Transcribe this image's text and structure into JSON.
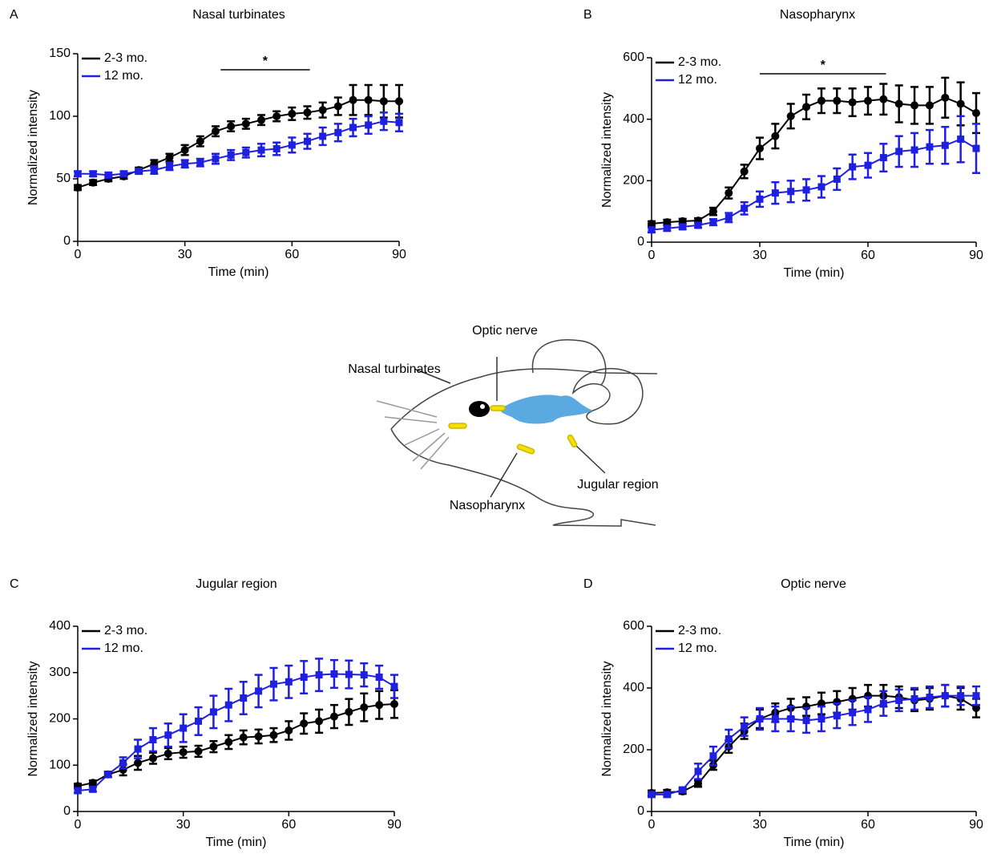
{
  "chart_data": [
    {
      "type": "line",
      "panel": "A",
      "title": "Nasal turbinates",
      "xlabel": "Time (min)",
      "ylabel": "Normalized intensity",
      "x": [
        0,
        4.3,
        8.6,
        12.9,
        17.1,
        21.4,
        25.7,
        30,
        34.3,
        38.6,
        42.9,
        47.1,
        51.4,
        55.7,
        60,
        64.3,
        68.6,
        72.9,
        77.1,
        81.4,
        85.7,
        90
      ],
      "series": [
        {
          "name": "2-3 mo.",
          "color": "#000000",
          "marker": "circle",
          "values": [
            43,
            47,
            50,
            52,
            57,
            62,
            67,
            73,
            80,
            88,
            92,
            94,
            97,
            100,
            102,
            103,
            105,
            108,
            113,
            113,
            112,
            112
          ],
          "errors": [
            2,
            2,
            2,
            2,
            2,
            3,
            3,
            4,
            4,
            4,
            4,
            4,
            4,
            4,
            5,
            5,
            6,
            7,
            12,
            12,
            13,
            13
          ]
        },
        {
          "name": "12 mo.",
          "color": "#1f1fe0",
          "marker": "square",
          "values": [
            54,
            54,
            53,
            54,
            56,
            57,
            60,
            62,
            63,
            66,
            69,
            71,
            73,
            74,
            77,
            80,
            84,
            87,
            91,
            93,
            96,
            95
          ],
          "errors": [
            2,
            2,
            2,
            2,
            2,
            3,
            3,
            3,
            3,
            4,
            4,
            4,
            5,
            5,
            6,
            6,
            7,
            7,
            7,
            7,
            7,
            7
          ]
        }
      ],
      "xlim": [
        0,
        90
      ],
      "xticks": [
        0,
        30,
        60,
        90
      ],
      "ylim": [
        0,
        150
      ],
      "yticks": [
        0,
        50,
        100,
        150
      ],
      "legend": "upper left",
      "annotation": {
        "text": "*",
        "x": [
          40,
          65
        ]
      }
    },
    {
      "type": "line",
      "panel": "B",
      "title": "Nasopharynx",
      "xlabel": "Time (min)",
      "ylabel": "Normalized intensity",
      "x": [
        0,
        4.3,
        8.6,
        12.9,
        17.1,
        21.4,
        25.7,
        30,
        34.3,
        38.6,
        42.9,
        47.1,
        51.4,
        55.7,
        60,
        64.3,
        68.6,
        72.9,
        77.1,
        81.4,
        85.7,
        90
      ],
      "series": [
        {
          "name": "2-3 mo.",
          "color": "#000000",
          "marker": "circle",
          "values": [
            60,
            65,
            68,
            70,
            100,
            160,
            230,
            305,
            345,
            410,
            440,
            460,
            460,
            455,
            460,
            465,
            450,
            445,
            445,
            470,
            450,
            420
          ],
          "errors": [
            8,
            8,
            8,
            8,
            12,
            18,
            22,
            35,
            40,
            40,
            40,
            40,
            40,
            45,
            45,
            50,
            60,
            60,
            60,
            65,
            70,
            65
          ]
        },
        {
          "name": "12 mo.",
          "color": "#1f1fe0",
          "marker": "square",
          "values": [
            40,
            45,
            50,
            55,
            65,
            80,
            110,
            140,
            160,
            165,
            170,
            180,
            205,
            245,
            250,
            275,
            295,
            300,
            310,
            315,
            335,
            305
          ],
          "errors": [
            8,
            8,
            8,
            8,
            10,
            15,
            20,
            25,
            35,
            35,
            35,
            35,
            35,
            40,
            40,
            45,
            50,
            55,
            55,
            60,
            75,
            80
          ]
        }
      ],
      "xlim": [
        0,
        90
      ],
      "xticks": [
        0,
        30,
        60,
        90
      ],
      "ylim": [
        0,
        600
      ],
      "yticks": [
        0,
        200,
        400,
        600
      ],
      "legend": "upper left",
      "annotation": {
        "text": "*",
        "x": [
          30,
          65
        ]
      }
    },
    {
      "type": "line",
      "panel": "C",
      "title": "Jugular region",
      "xlabel": "Time (min)",
      "ylabel": "Normalized intensity",
      "x": [
        0,
        4.3,
        8.6,
        12.9,
        17.1,
        21.4,
        25.7,
        30,
        34.3,
        38.6,
        42.9,
        47.1,
        51.4,
        55.7,
        60,
        64.3,
        68.6,
        72.9,
        77.1,
        81.4,
        85.7,
        90
      ],
      "series": [
        {
          "name": "2-3 mo.",
          "color": "#000000",
          "marker": "circle",
          "values": [
            55,
            62,
            80,
            90,
            105,
            115,
            125,
            128,
            130,
            140,
            150,
            160,
            162,
            165,
            175,
            190,
            195,
            205,
            215,
            225,
            230,
            232
          ],
          "errors": [
            5,
            5,
            6,
            12,
            15,
            12,
            12,
            12,
            12,
            12,
            15,
            15,
            15,
            15,
            20,
            22,
            25,
            25,
            28,
            30,
            30,
            30
          ]
        },
        {
          "name": "12 mo.",
          "color": "#1f1fe0",
          "marker": "square",
          "values": [
            45,
            48,
            80,
            105,
            135,
            155,
            165,
            180,
            195,
            215,
            230,
            245,
            260,
            275,
            280,
            290,
            295,
            297,
            296,
            295,
            290,
            270
          ],
          "errors": [
            5,
            5,
            6,
            12,
            20,
            25,
            25,
            30,
            30,
            35,
            35,
            35,
            35,
            35,
            35,
            35,
            35,
            30,
            30,
            25,
            25,
            25
          ]
        }
      ],
      "xlim": [
        0,
        90
      ],
      "xticks": [
        0,
        30,
        60,
        90
      ],
      "ylim": [
        0,
        400
      ],
      "yticks": [
        0,
        100,
        200,
        300,
        400
      ],
      "legend": "upper left"
    },
    {
      "type": "line",
      "panel": "D",
      "title": "Optic nerve",
      "xlabel": "Time (min)",
      "ylabel": "Normalized intensity",
      "x": [
        0,
        4.3,
        8.6,
        12.9,
        17.1,
        21.4,
        25.7,
        30,
        34.3,
        38.6,
        42.9,
        47.1,
        51.4,
        55.7,
        60,
        64.3,
        68.6,
        72.9,
        77.1,
        81.4,
        85.7,
        90
      ],
      "series": [
        {
          "name": "2-3 mo.",
          "color": "#000000",
          "marker": "circle",
          "values": [
            60,
            62,
            65,
            90,
            150,
            210,
            260,
            300,
            320,
            335,
            340,
            350,
            355,
            365,
            375,
            375,
            370,
            360,
            365,
            375,
            365,
            335
          ],
          "errors": [
            8,
            8,
            8,
            10,
            15,
            20,
            25,
            30,
            30,
            30,
            30,
            35,
            35,
            35,
            35,
            35,
            35,
            35,
            35,
            35,
            35,
            30
          ]
        },
        {
          "name": "12 mo.",
          "color": "#1f1fe0",
          "marker": "square",
          "values": [
            55,
            55,
            70,
            130,
            180,
            235,
            275,
            300,
            300,
            300,
            295,
            300,
            310,
            320,
            330,
            350,
            360,
            365,
            370,
            375,
            375,
            375
          ],
          "errors": [
            8,
            8,
            8,
            25,
            30,
            30,
            30,
            35,
            40,
            40,
            40,
            40,
            40,
            40,
            40,
            40,
            35,
            35,
            35,
            35,
            30,
            30
          ]
        }
      ],
      "xlim": [
        0,
        90
      ],
      "xticks": [
        0,
        30,
        60,
        90
      ],
      "ylim": [
        0,
        600
      ],
      "yticks": [
        0,
        200,
        400,
        600
      ],
      "legend": "upper left"
    }
  ],
  "diagram": {
    "labels": [
      "Optic nerve",
      "Nasal turbinates",
      "Nasopharynx",
      "Jugular region"
    ]
  }
}
